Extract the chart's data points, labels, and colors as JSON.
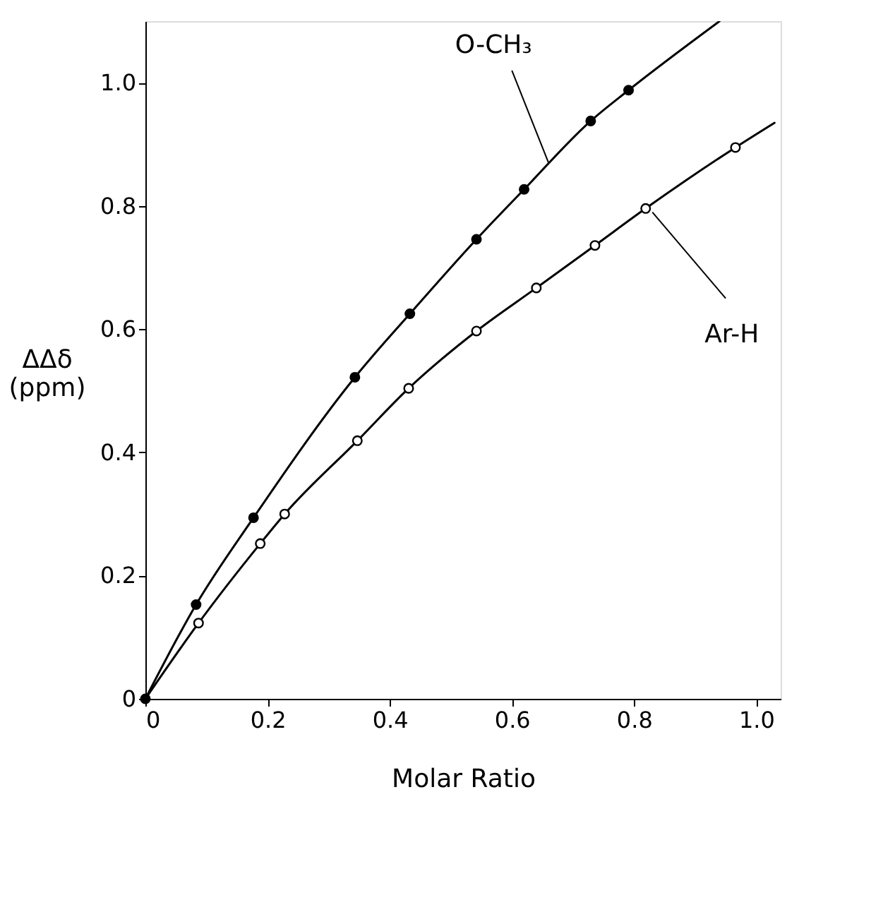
{
  "chart_data": {
    "type": "line",
    "xlabel": "Molar Ratio",
    "ylabel": "ΔΔδ\n(ppm)",
    "xlim": [
      0,
      1.04
    ],
    "ylim": [
      0,
      1.1
    ],
    "xticks": [
      {
        "value": 0,
        "label": "0"
      },
      0.2,
      0.4,
      0.6,
      0.8,
      {
        "value": 1.0,
        "label": "1.0"
      }
    ],
    "yticks": [
      {
        "value": 0,
        "label": "0"
      },
      0.2,
      0.4,
      0.6,
      0.8,
      {
        "value": 1.0,
        "label": "1.0"
      }
    ],
    "grid": false,
    "line_style": "solid",
    "series": [
      {
        "color": "#000000",
        "marker": "none",
        "x": [
          0,
          0.083,
          0.177,
          0.343,
          0.433,
          0.542,
          0.62,
          0.729,
          0.791,
          0.94
        ],
        "values": [
          0,
          0.153,
          0.294,
          0.522,
          0.625,
          0.746,
          0.827,
          0.938,
          0.988,
          1.1
        ]
      },
      {
        "color": "#000000",
        "marker": "none",
        "x": [
          0,
          0.087,
          0.188,
          0.228,
          0.347,
          0.431,
          0.542,
          0.64,
          0.736,
          0.819,
          0.966,
          1.03
        ],
        "values": [
          0,
          0.123,
          0.252,
          0.3,
          0.419,
          0.504,
          0.597,
          0.667,
          0.736,
          0.796,
          0.895,
          0.935
        ]
      },
      {
        "type": "scatter",
        "marker": "circle",
        "color": "#000000",
        "x": [
          0,
          0.083,
          0.177,
          0.343,
          0.433,
          0.542,
          0.62,
          0.729,
          0.791
        ],
        "values": [
          0,
          0.153,
          0.294,
          0.522,
          0.625,
          0.746,
          0.827,
          0.938,
          0.988
        ]
      },
      {
        "type": "scatter",
        "marker": "circle",
        "color": "#ffffff",
        "x": [
          0.087,
          0.188,
          0.228,
          0.347,
          0.431,
          0.542,
          0.64,
          0.736,
          0.819,
          0.966
        ],
        "values": [
          0.123,
          0.252,
          0.3,
          0.419,
          0.504,
          0.597,
          0.667,
          0.736,
          0.796,
          0.895
        ]
      }
    ],
    "annotations": [
      {
        "text": "O-CH₃",
        "x": 0.66,
        "y": 0.87
      },
      {
        "text": "Ar-H",
        "x": 0.83,
        "y": 0.79
      }
    ]
  }
}
